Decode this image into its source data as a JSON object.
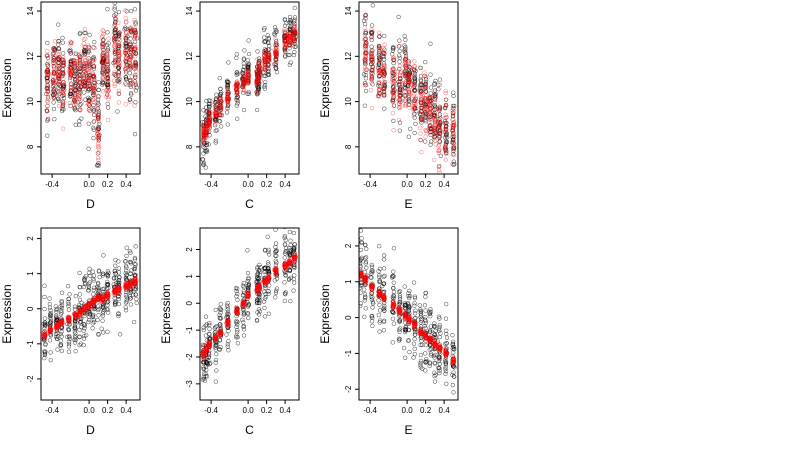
{
  "figure": {
    "background": "#ffffff",
    "point_colors": {
      "observed": "#000000",
      "fitted": "#ff0000"
    },
    "marker": "open-circle"
  },
  "chart_data": [
    {
      "type": "scatter",
      "row": 1,
      "col": 1,
      "xlabel": "D",
      "ylabel": "Expression",
      "xlim": [
        -0.52,
        0.55
      ],
      "ylim": [
        6.8,
        14.4
      ],
      "xticks": [
        -0.4,
        0.0,
        0.2,
        0.4
      ],
      "xtick_labels": [
        "-0.4",
        "0.0",
        "0.2",
        "0.4"
      ],
      "yticks": [
        8,
        10,
        12,
        14
      ],
      "ytick_labels": [
        "8",
        "10",
        "12",
        "14"
      ],
      "x_levels": [
        -0.45,
        -0.38,
        -0.33,
        -0.28,
        -0.2,
        -0.15,
        -0.1,
        -0.05,
        0.0,
        0.05,
        0.1,
        0.15,
        0.2,
        0.28,
        0.32,
        0.4,
        0.45,
        0.5
      ],
      "observed": {
        "mean": [
          10.8,
          11.0,
          11.2,
          10.9,
          11.3,
          10.8,
          11.0,
          11.5,
          10.9,
          10.7,
          8.8,
          11.8,
          11.2,
          12.5,
          11.8,
          12.3,
          11.9,
          12.1
        ],
        "spread": 1.6
      },
      "fitted": {
        "mean": [
          10.9,
          11.1,
          11.2,
          11.0,
          11.2,
          11.0,
          11.1,
          11.4,
          11.0,
          10.8,
          8.6,
          11.7,
          11.2,
          12.4,
          11.8,
          12.3,
          12.0,
          12.0
        ],
        "spread": 1.4
      },
      "n_per_level": 30
    },
    {
      "type": "scatter",
      "row": 1,
      "col": 2,
      "xlabel": "C",
      "ylabel": "Expression",
      "xlim": [
        -0.52,
        0.55
      ],
      "ylim": [
        6.8,
        14.4
      ],
      "xticks": [
        -0.4,
        0.0,
        0.2,
        0.4
      ],
      "xtick_labels": [
        "-0.4",
        "0.0",
        "0.2",
        "0.4"
      ],
      "yticks": [
        8,
        10,
        12,
        14
      ],
      "ytick_labels": [
        "8",
        "10",
        "12",
        "14"
      ],
      "x_levels": [
        -0.48,
        -0.45,
        -0.42,
        -0.35,
        -0.3,
        -0.22,
        -0.12,
        -0.05,
        0.0,
        0.1,
        0.12,
        0.18,
        0.22,
        0.3,
        0.4,
        0.45,
        0.5
      ],
      "observed": {
        "mean": [
          8.4,
          8.7,
          9.3,
          9.5,
          9.8,
          10.3,
          10.6,
          11.0,
          11.1,
          10.8,
          11.3,
          11.8,
          12.0,
          12.3,
          12.8,
          12.9,
          13.0
        ],
        "spread": 1.0
      },
      "fitted": {
        "mean": [
          8.5,
          8.7,
          9.2,
          9.5,
          9.8,
          10.2,
          10.6,
          10.9,
          11.1,
          10.9,
          11.4,
          11.8,
          12.0,
          12.2,
          12.7,
          12.8,
          13.0
        ],
        "spread": 0.4
      },
      "n_per_level": 26
    },
    {
      "type": "scatter",
      "row": 1,
      "col": 3,
      "xlabel": "E",
      "ylabel": "Expression",
      "xlim": [
        -0.52,
        0.55
      ],
      "ylim": [
        6.8,
        14.4
      ],
      "xticks": [
        -0.4,
        0.0,
        0.2,
        0.4
      ],
      "xtick_labels": [
        "-0.4",
        "0.0",
        "0.2",
        "0.4"
      ],
      "yticks": [
        8,
        10,
        12,
        14
      ],
      "ytick_labels": [
        "8",
        "10",
        "12",
        "14"
      ],
      "x_levels": [
        -0.45,
        -0.38,
        -0.3,
        -0.25,
        -0.15,
        -0.08,
        -0.02,
        0.02,
        0.08,
        0.15,
        0.2,
        0.25,
        0.3,
        0.35,
        0.42,
        0.5
      ],
      "observed": {
        "mean": [
          12.3,
          12.0,
          11.6,
          11.2,
          11.0,
          10.8,
          11.4,
          10.9,
          10.4,
          10.2,
          10.0,
          9.6,
          9.3,
          9.0,
          8.8,
          8.6
        ],
        "spread": 1.5
      },
      "fitted": {
        "mean": [
          12.2,
          11.9,
          11.5,
          11.2,
          10.9,
          10.7,
          11.2,
          10.8,
          10.3,
          10.0,
          9.7,
          9.4,
          9.1,
          8.8,
          8.6,
          8.5
        ],
        "spread": 1.3
      },
      "n_per_level": 28
    },
    {
      "type": "scatter",
      "row": 2,
      "col": 1,
      "xlabel": "D",
      "ylabel": "Expression",
      "xlim": [
        -0.52,
        0.55
      ],
      "ylim": [
        -2.6,
        2.3
      ],
      "xticks": [
        -0.4,
        0.0,
        0.2,
        0.4
      ],
      "xtick_labels": [
        "-0.4",
        "0.0",
        "0.2",
        "0.4"
      ],
      "yticks": [
        -2,
        -1,
        0,
        1,
        2
      ],
      "ytick_labels": [
        "-2",
        "-1",
        "0",
        "1",
        "2"
      ],
      "x_levels": [
        -0.48,
        -0.42,
        -0.35,
        -0.3,
        -0.22,
        -0.15,
        -0.1,
        -0.05,
        0.0,
        0.05,
        0.1,
        0.15,
        0.2,
        0.28,
        0.32,
        0.4,
        0.45,
        0.5
      ],
      "observed": {
        "mean": [
          -0.8,
          -0.6,
          -0.5,
          -0.4,
          -0.3,
          -0.2,
          -0.1,
          0.0,
          0.1,
          0.2,
          0.3,
          0.3,
          0.4,
          0.5,
          0.6,
          0.7,
          0.8,
          0.8
        ],
        "spread": 0.8
      },
      "fitted": {
        "mean": [
          -0.75,
          -0.6,
          -0.5,
          -0.4,
          -0.3,
          -0.2,
          -0.1,
          0.0,
          0.1,
          0.2,
          0.3,
          0.3,
          0.4,
          0.5,
          0.55,
          0.65,
          0.7,
          0.8
        ],
        "spread": 0.08
      },
      "n_per_level": 26
    },
    {
      "type": "scatter",
      "row": 2,
      "col": 2,
      "xlabel": "C",
      "ylabel": "Expression",
      "xlim": [
        -0.52,
        0.55
      ],
      "ylim": [
        -3.6,
        2.8
      ],
      "xticks": [
        -0.4,
        0.0,
        0.2,
        0.4
      ],
      "xtick_labels": [
        "-0.4",
        "0.0",
        "0.2",
        "0.4"
      ],
      "yticks": [
        -3,
        -2,
        -1,
        0,
        1,
        2
      ],
      "ytick_labels": [
        "-3",
        "-2",
        "-1",
        "0",
        "1",
        "2"
      ],
      "x_levels": [
        -0.48,
        -0.45,
        -0.42,
        -0.35,
        -0.3,
        -0.22,
        -0.12,
        -0.05,
        0.0,
        0.1,
        0.12,
        0.18,
        0.22,
        0.3,
        0.4,
        0.45,
        0.5
      ],
      "observed": {
        "mean": [
          -2.0,
          -1.8,
          -1.5,
          -1.3,
          -1.1,
          -0.7,
          -0.3,
          0.0,
          0.3,
          0.5,
          0.6,
          0.8,
          0.9,
          1.2,
          1.4,
          1.5,
          1.8
        ],
        "spread": 1.0
      },
      "fitted": {
        "mean": [
          -1.9,
          -1.7,
          -1.5,
          -1.3,
          -1.1,
          -0.7,
          -0.3,
          0.0,
          0.3,
          0.5,
          0.6,
          0.8,
          0.9,
          1.2,
          1.4,
          1.5,
          1.7
        ],
        "spread": 0.1
      },
      "n_per_level": 26
    },
    {
      "type": "scatter",
      "row": 2,
      "col": 3,
      "xlabel": "E",
      "ylabel": "Expression",
      "xlim": [
        -0.52,
        0.55
      ],
      "ylim": [
        -2.3,
        2.5
      ],
      "xticks": [
        -0.4,
        0.0,
        0.2,
        0.4
      ],
      "xtick_labels": [
        "-0.4",
        "0.0",
        "0.2",
        "0.4"
      ],
      "yticks": [
        -2,
        -1,
        0,
        1,
        2
      ],
      "ytick_labels": [
        "-2",
        "-1",
        "0",
        "1",
        "2"
      ],
      "x_levels": [
        -0.5,
        -0.45,
        -0.38,
        -0.3,
        -0.25,
        -0.15,
        -0.08,
        -0.02,
        0.02,
        0.08,
        0.15,
        0.2,
        0.25,
        0.3,
        0.35,
        0.42,
        0.5
      ],
      "observed": {
        "mean": [
          1.2,
          1.0,
          0.8,
          0.6,
          0.5,
          0.3,
          0.1,
          0.0,
          -0.1,
          -0.2,
          -0.4,
          -0.5,
          -0.6,
          -0.7,
          -0.8,
          -0.9,
          -1.1
        ],
        "spread": 0.9
      },
      "fitted": {
        "mean": [
          1.2,
          1.05,
          0.85,
          0.65,
          0.55,
          0.35,
          0.2,
          0.05,
          -0.05,
          -0.2,
          -0.4,
          -0.5,
          -0.6,
          -0.75,
          -0.85,
          -1.0,
          -1.2
        ],
        "spread": 0.08
      },
      "n_per_level": 26
    }
  ]
}
